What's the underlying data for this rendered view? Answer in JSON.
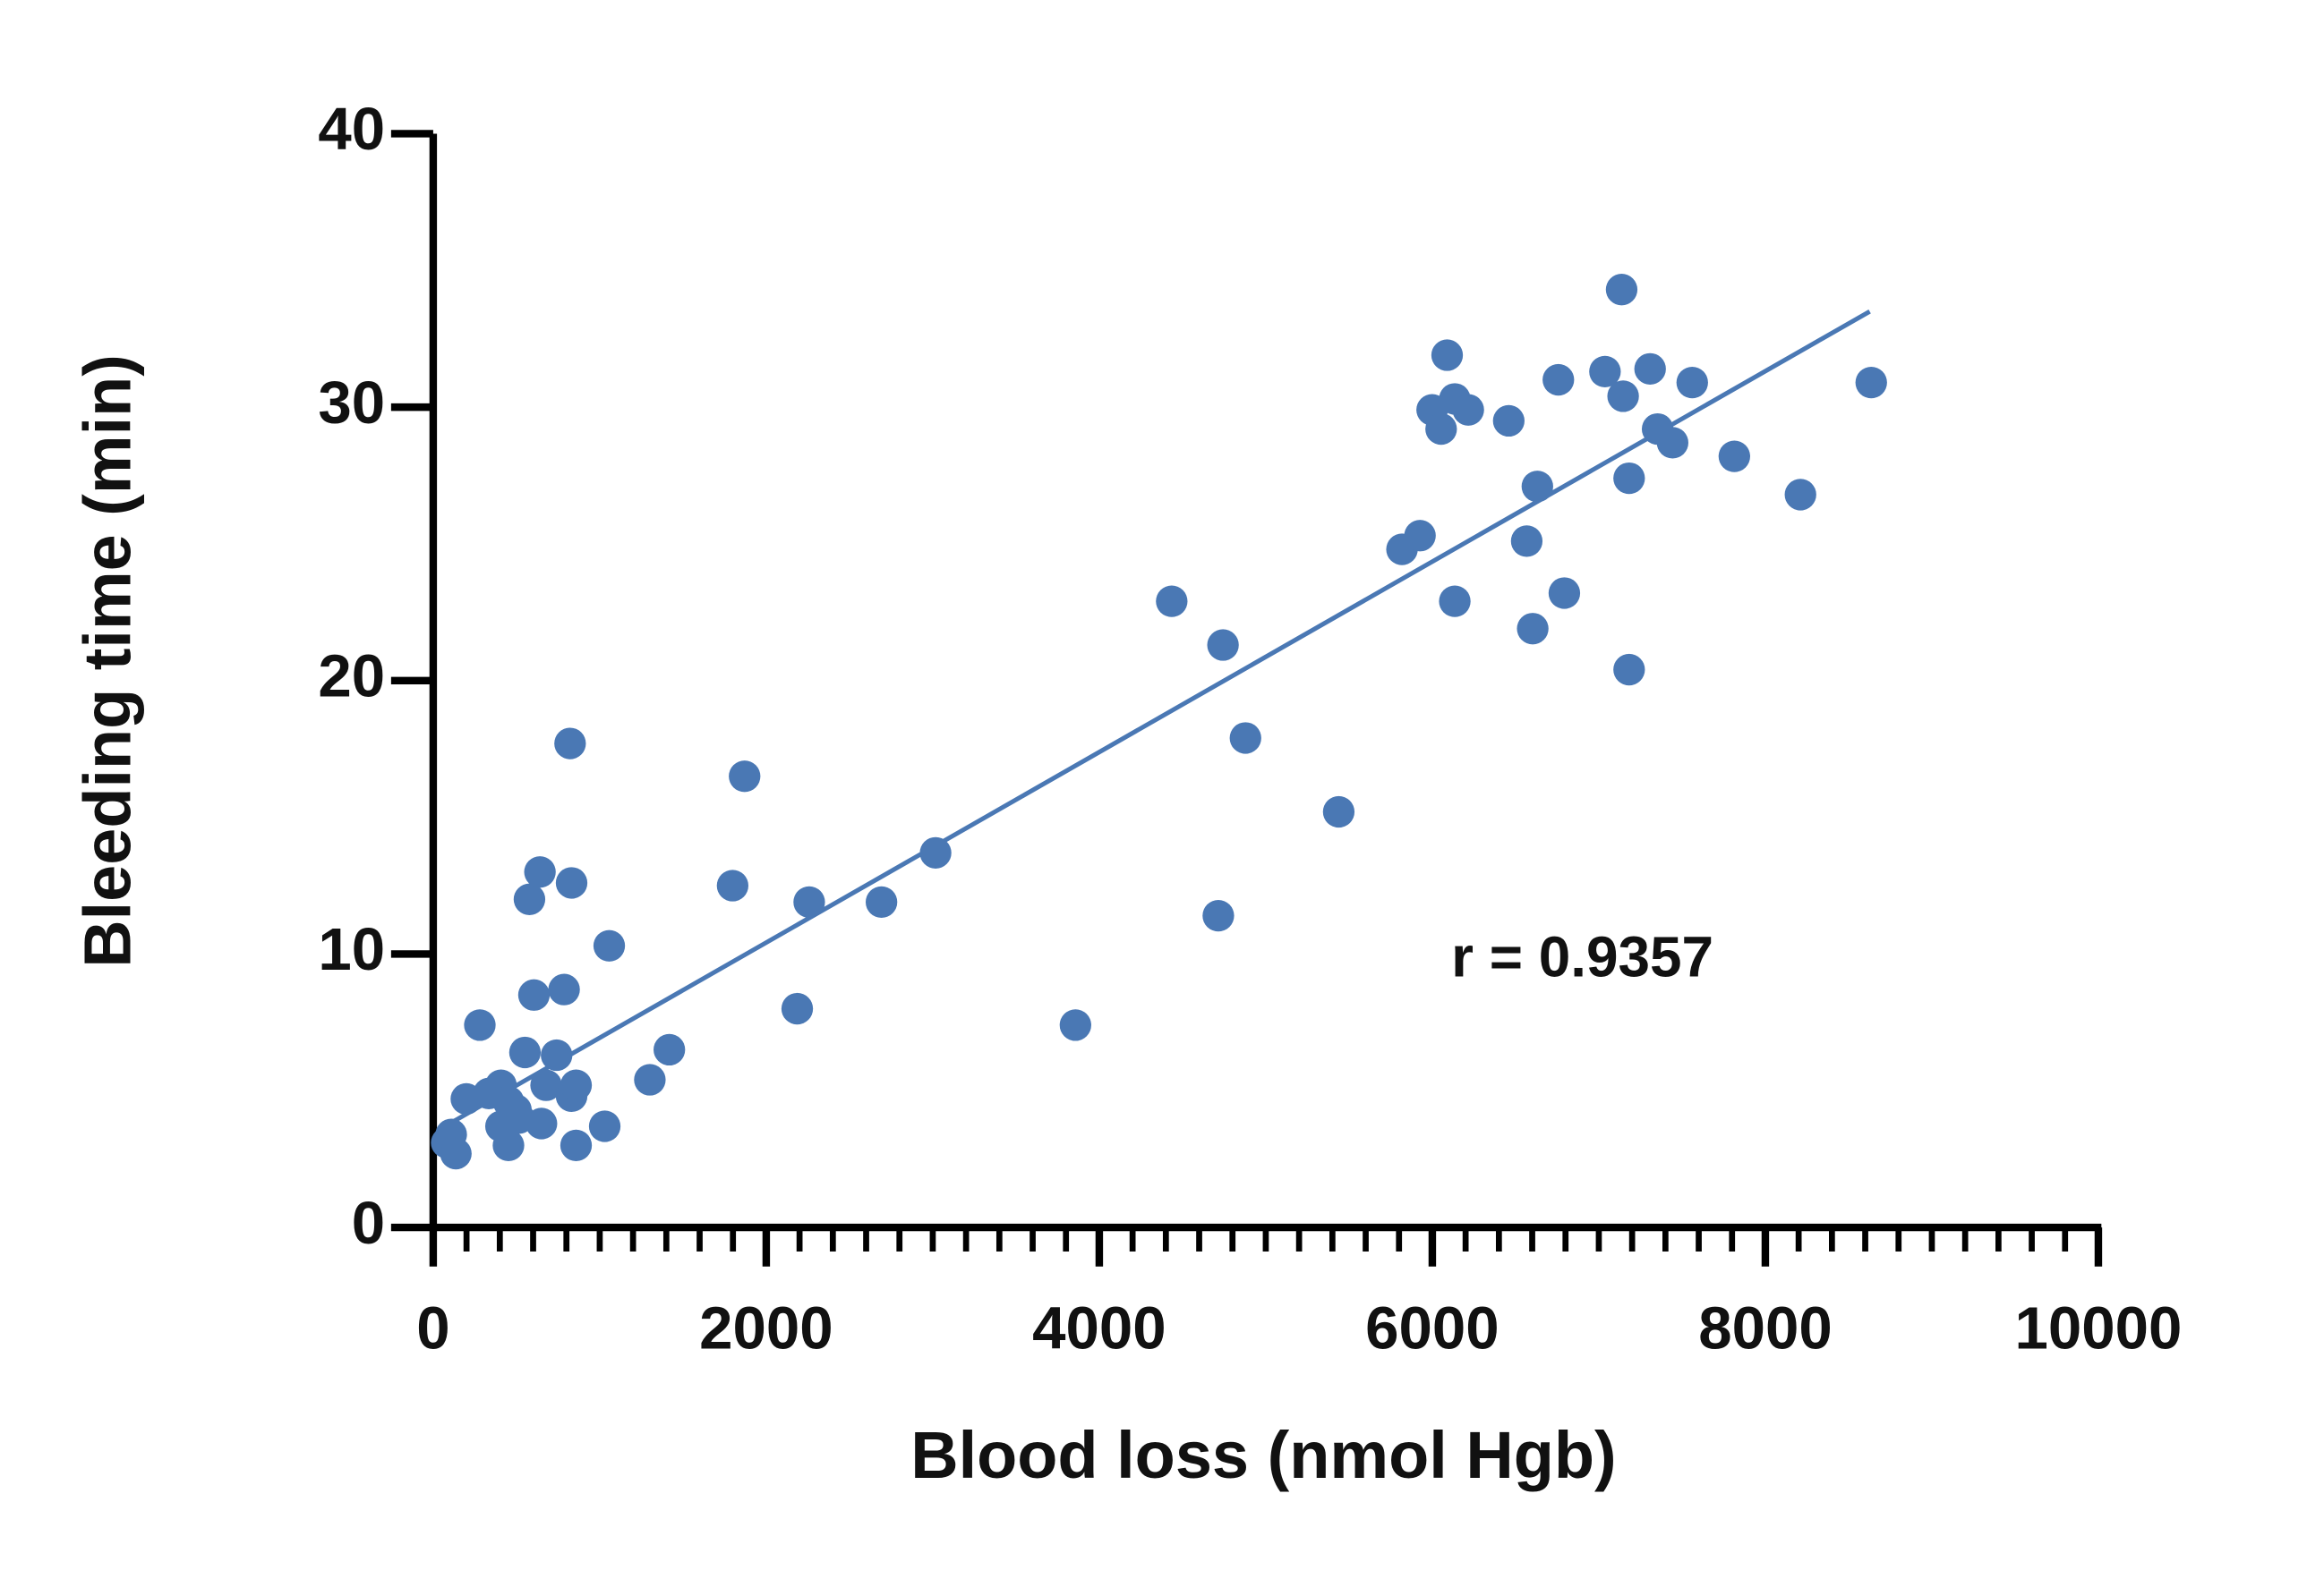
{
  "chart_data": {
    "type": "scatter",
    "x_label": "Blood loss (nmol Hgb)",
    "y_label": "Bleeding time (min)",
    "annotation": "r = 0.9357",
    "color": "#4a78b4",
    "x": [
      81,
      136,
      108,
      199,
      280,
      334,
      407,
      452,
      407,
      452,
      515,
      497,
      551,
      578,
      605,
      641,
      650,
      678,
      741,
      786,
      822,
      831,
      831,
      858,
      858,
      1030,
      1057,
      1301,
      1418,
      1798,
      1870,
      2186,
      2258,
      2692,
      3017,
      3857,
      4435,
      4715,
      4743,
      4878,
      5438,
      5818,
      5926,
      5999,
      6089,
      6053,
      6135,
      6216,
      6135,
      6459,
      6567,
      6603,
      6631,
      6757,
      6793,
      7037,
      7137,
      7146,
      7182,
      7182,
      7308,
      7353,
      7443,
      7561,
      7814,
      8211,
      8636
    ],
    "values": [
      3.1,
      2.7,
      3.4,
      4.7,
      7.4,
      4.9,
      5.2,
      4.6,
      3.7,
      3.0,
      4.0,
      4.3,
      6.4,
      12.0,
      8.5,
      13.0,
      3.8,
      5.2,
      6.3,
      8.7,
      17.7,
      12.6,
      4.8,
      5.2,
      3.0,
      3.7,
      10.3,
      5.4,
      6.5,
      12.5,
      16.5,
      8.0,
      11.9,
      11.9,
      13.7,
      7.4,
      22.9,
      11.4,
      21.3,
      17.9,
      15.2,
      24.8,
      25.3,
      29.9,
      31.9,
      29.2,
      30.3,
      29.9,
      22.9,
      29.5,
      25.1,
      21.9,
      27.1,
      31.0,
      23.2,
      31.3,
      34.3,
      30.4,
      27.4,
      20.4,
      31.4,
      29.2,
      28.7,
      30.9,
      28.2,
      26.8,
      30.9
    ],
    "trendline": {
      "x": [
        108,
        8627
      ],
      "y": [
        3.83,
        33.5
      ]
    },
    "xlim": [
      0,
      10000
    ],
    "ylim": [
      0,
      40
    ],
    "xticks": [
      0,
      2000,
      4000,
      6000,
      8000,
      10000
    ],
    "xminorticks": [
      200,
      400,
      600,
      800,
      1000,
      1200,
      1400,
      1600,
      1800,
      2200,
      2400,
      2600,
      2800,
      3000,
      3200,
      3400,
      3600,
      3800,
      4200,
      4400,
      4600,
      4800,
      5000,
      5200,
      5400,
      5600,
      5800,
      6200,
      6400,
      6600,
      6800,
      7000,
      7200,
      7400,
      7600,
      7800,
      8200,
      8400,
      8600,
      8800,
      9000,
      9200,
      9400,
      9600,
      9800
    ],
    "yticks": [
      0,
      10,
      20,
      30,
      40
    ]
  }
}
